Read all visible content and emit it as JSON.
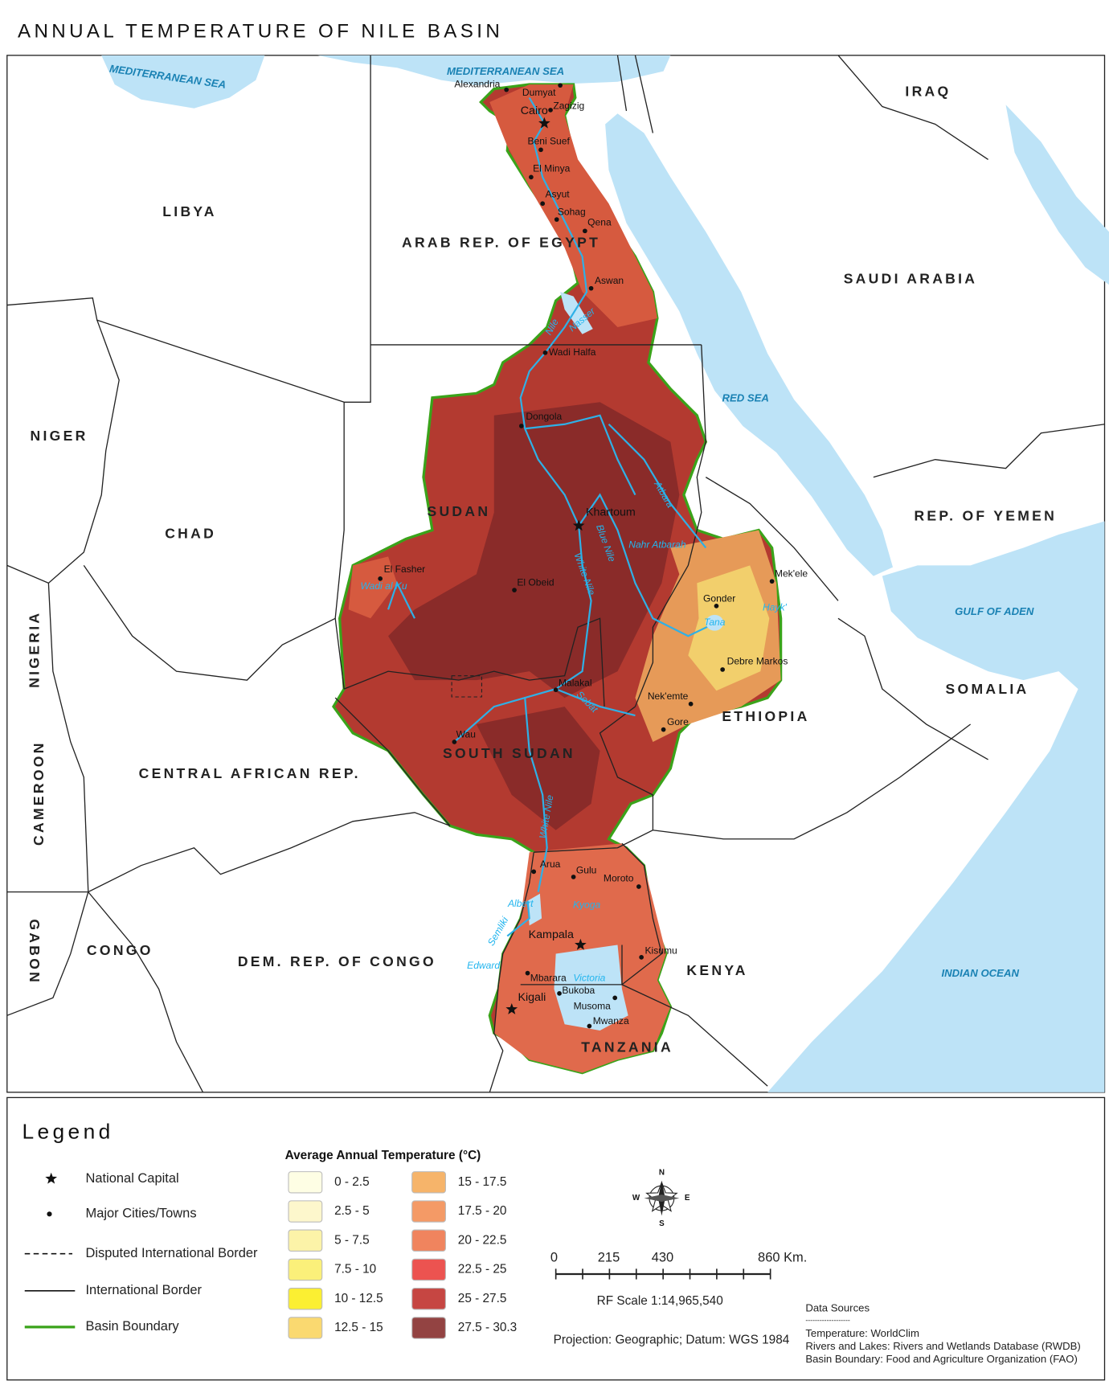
{
  "title": "ANNUAL TEMPERATURE OF NILE BASIN",
  "map": {
    "countries": [
      "LIBYA",
      "ARAB REP. OF EGYPT",
      "SAUDI ARABIA",
      "IRAQ",
      "NIGER",
      "CHAD",
      "SUDAN",
      "REP. OF YEMEN",
      "SOMALIA",
      "ETHIOPIA",
      "NIGERIA",
      "CAMEROON",
      "CENTRAL AFRICAN REP.",
      "SOUTH SUDAN",
      "GABON",
      "CONGO",
      "DEM. REP. OF CONGO",
      "KENYA",
      "TANZANIA"
    ],
    "seas": [
      "MEDITERRANEAN SEA",
      "MEDITERRANEAN SEA",
      "RED SEA",
      "GULF OF ADEN",
      "INDIAN OCEAN"
    ],
    "cities": [
      {
        "name": "Alexandria",
        "kind": "town"
      },
      {
        "name": "Dumyat",
        "kind": "town"
      },
      {
        "name": "Zagizig",
        "kind": "town"
      },
      {
        "name": "Cairo",
        "kind": "capital"
      },
      {
        "name": "Beni Suef",
        "kind": "town"
      },
      {
        "name": "El Minya",
        "kind": "town"
      },
      {
        "name": "Asyut",
        "kind": "town"
      },
      {
        "name": "Sohag",
        "kind": "town"
      },
      {
        "name": "Qena",
        "kind": "town"
      },
      {
        "name": "Aswan",
        "kind": "town"
      },
      {
        "name": "Wadi Halfa",
        "kind": "town"
      },
      {
        "name": "Dongola",
        "kind": "town"
      },
      {
        "name": "Khartoum",
        "kind": "capital"
      },
      {
        "name": "El Fasher",
        "kind": "town"
      },
      {
        "name": "El Obeid",
        "kind": "town"
      },
      {
        "name": "Malakal",
        "kind": "town"
      },
      {
        "name": "Wau",
        "kind": "town"
      },
      {
        "name": "Mek'ele",
        "kind": "town"
      },
      {
        "name": "Gonder",
        "kind": "town"
      },
      {
        "name": "Debre Markos",
        "kind": "town"
      },
      {
        "name": "Nek'emte",
        "kind": "town"
      },
      {
        "name": "Gore",
        "kind": "town"
      },
      {
        "name": "Arua",
        "kind": "town"
      },
      {
        "name": "Gulu",
        "kind": "town"
      },
      {
        "name": "Moroto",
        "kind": "town"
      },
      {
        "name": "Kampala",
        "kind": "capital"
      },
      {
        "name": "Kisumu",
        "kind": "town"
      },
      {
        "name": "Mbarara",
        "kind": "town"
      },
      {
        "name": "Bukoba",
        "kind": "town"
      },
      {
        "name": "Kigali",
        "kind": "capital"
      },
      {
        "name": "Musoma",
        "kind": "town"
      },
      {
        "name": "Mwanza",
        "kind": "town"
      }
    ],
    "waters": [
      "Nile",
      "Nasser",
      "Atbara",
      "Nahr Atbarah",
      "Blue Nile",
      "White Nile",
      "White Nile",
      "Sobat",
      "Wadi al Ku",
      "Tana",
      "Hayk'",
      "Albert",
      "Kyoga",
      "Victoria",
      "Edward",
      "Semliki"
    ]
  },
  "legend": {
    "title": "Legend",
    "symbols": [
      "National Capital",
      "Major Cities/Towns",
      "Disputed International Border",
      "International Border",
      "Basin Boundary"
    ],
    "temperature": {
      "title": "Average Annual Temperature (°C)",
      "classes": [
        {
          "label": "0 - 2.5",
          "color": "#fefee4"
        },
        {
          "label": "2.5 - 5",
          "color": "#fdf7cc"
        },
        {
          "label": "5 - 7.5",
          "color": "#fcf3a8"
        },
        {
          "label": "7.5 - 10",
          "color": "#fbf07a"
        },
        {
          "label": "10 - 12.5",
          "color": "#fbef32"
        },
        {
          "label": "12.5 - 15",
          "color": "#fad970"
        },
        {
          "label": "15 - 17.5",
          "color": "#f6b46a"
        },
        {
          "label": "17.5 - 20",
          "color": "#f49a66"
        },
        {
          "label": "20 - 22.5",
          "color": "#f0845e"
        },
        {
          "label": "22.5 - 25",
          "color": "#ec5350"
        },
        {
          "label": "25 - 27.5",
          "color": "#c64642"
        },
        {
          "label": "27.5 - 30.3",
          "color": "#934342"
        }
      ]
    }
  },
  "compass": {
    "n": "N",
    "e": "E",
    "s": "S",
    "w": "W"
  },
  "scale_bar": {
    "labels": [
      "0",
      "215",
      "430",
      "860 Km."
    ],
    "rf": "RF Scale 1:14,965,540"
  },
  "projection": "Projection: Geographic; Datum: WGS 1984",
  "data_sources": {
    "title": "Data Sources",
    "separator": "-------------------",
    "items": [
      "Temperature: WorldClim",
      "Rivers and Lakes: Rivers and Wetlands Database (RWDB)",
      "Basin Boundary: Food and Agriculture Organization (FAO)"
    ]
  }
}
